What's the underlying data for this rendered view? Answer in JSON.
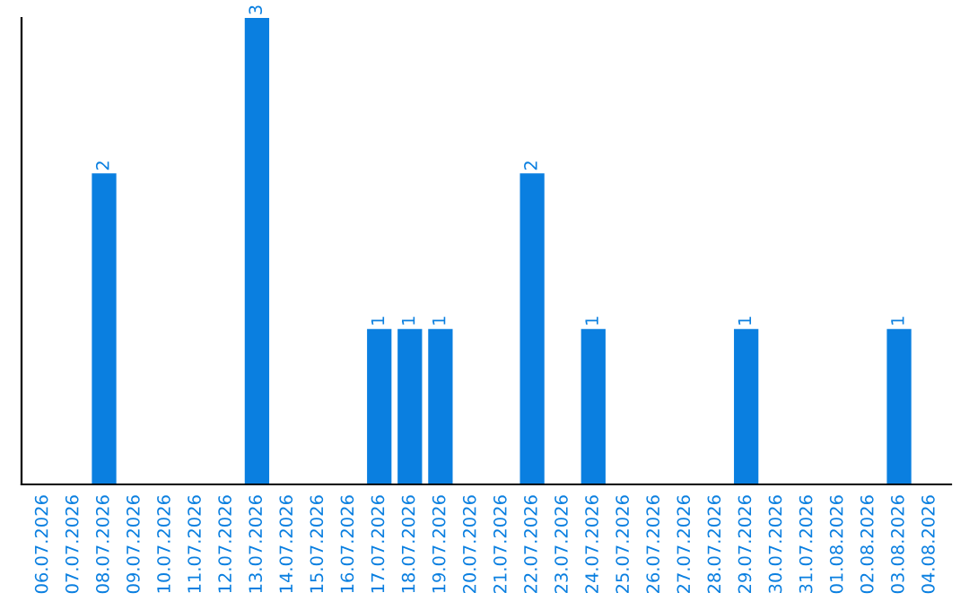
{
  "chart_data": {
    "type": "bar",
    "categories": [
      "06.07.2026",
      "07.07.2026",
      "08.07.2026",
      "09.07.2026",
      "10.07.2026",
      "11.07.2026",
      "12.07.2026",
      "13.07.2026",
      "14.07.2026",
      "15.07.2026",
      "16.07.2026",
      "17.07.2026",
      "18.07.2026",
      "19.07.2026",
      "20.07.2026",
      "21.07.2026",
      "22.07.2026",
      "23.07.2026",
      "24.07.2026",
      "25.07.2026",
      "26.07.2026",
      "27.07.2026",
      "28.07.2026",
      "29.07.2026",
      "30.07.2026",
      "31.07.2026",
      "01.08.2026",
      "02.08.2026",
      "03.08.2026",
      "04.08.2026"
    ],
    "values": [
      0,
      0,
      2,
      0,
      0,
      0,
      0,
      3,
      0,
      0,
      0,
      1,
      1,
      1,
      0,
      0,
      2,
      0,
      1,
      0,
      0,
      0,
      0,
      1,
      0,
      0,
      0,
      0,
      1,
      0
    ],
    "value_labels": [
      null,
      null,
      "2",
      null,
      null,
      null,
      null,
      "3",
      null,
      null,
      null,
      "1",
      "1",
      "1",
      null,
      null,
      "2",
      null,
      "1",
      null,
      null,
      null,
      null,
      "1",
      null,
      null,
      null,
      null,
      "1",
      null
    ],
    "color": "#0a7fe0",
    "tick_labels": "x",
    "grid": false
  }
}
